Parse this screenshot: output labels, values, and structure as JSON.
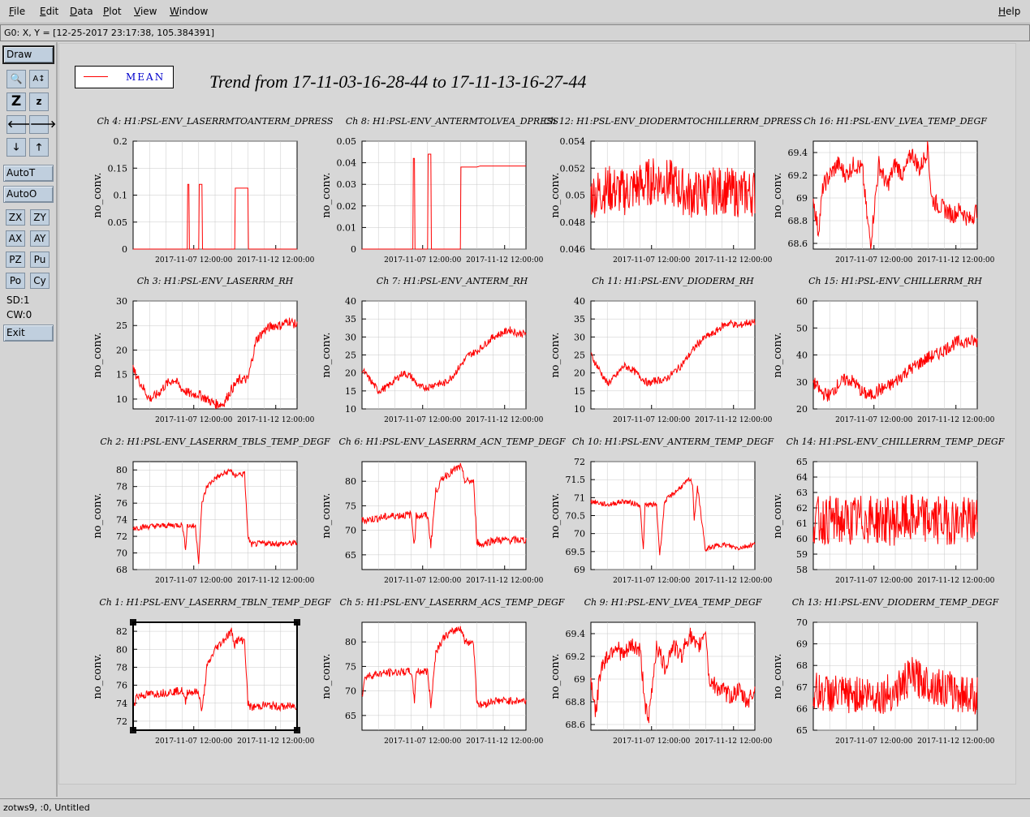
{
  "menu": {
    "file": "File",
    "edit": "Edit",
    "data": "Data",
    "plot": "Plot",
    "view": "View",
    "window": "Window",
    "help": "Help"
  },
  "coord_readout": "G0: X, Y = [12-25-2017 23:17:38, 105.384391]",
  "toolbar": {
    "draw": "Draw",
    "autot": "AutoT",
    "autoo": "AutoO",
    "zx": "ZX",
    "zy": "ZY",
    "ax": "AX",
    "ay": "AY",
    "pz": "PZ",
    "pu": "Pu",
    "po": "Po",
    "cy": "Cy",
    "sd": "SD:1",
    "cw": "CW:0",
    "exit": "Exit",
    "icons": [
      "magnify-icon",
      "autoscale-icon",
      "zoom-in-icon",
      "zoom-out-icon",
      "arrow-left-icon",
      "arrow-right-icon",
      "arrow-down-icon",
      "arrow-up-icon"
    ],
    "tool_glyphs": [
      "🔍",
      "A↕",
      "Z",
      "z",
      "🡐",
      "🡒",
      "🡓",
      "🡑"
    ]
  },
  "legend": {
    "label": "MEAN",
    "color": "#ff0000"
  },
  "title": "Trend from 17-11-03-16-28-44 to 17-11-13-16-27-44",
  "status": "zotws9, :0, Untitled",
  "colors": {
    "trace": "#ff0000",
    "plot_bg": "#ffffff",
    "grid": "#c8c8c8"
  },
  "chart_data": [
    {
      "type": "line",
      "title": "Ch 4: H1:PSL-ENV_LASERRMTOANTERM_DPRESS",
      "ylabel": "no_conv.",
      "ylim": [
        0,
        0.2
      ],
      "yticks": [
        "0",
        "0.05",
        "0.1",
        "0.15",
        "0.2"
      ],
      "xticks": [
        "2017-11-07 12:00:00",
        "2017-11-12 12:00:00"
      ],
      "series": [
        {
          "x": [
            0,
            0.33,
            0.33,
            0.34,
            0.34,
            0.4,
            0.4,
            0.42,
            0.42,
            0.62,
            0.62,
            0.7,
            0.7,
            0.75,
            1
          ],
          "values": [
            0,
            0,
            0.12,
            0.12,
            0,
            0,
            0.12,
            0.12,
            0,
            0,
            0.113,
            0.113,
            0,
            0,
            0
          ]
        }
      ]
    },
    {
      "type": "line",
      "title": "Ch 8: H1:PSL-ENV_ANTERMTOLVEA_DPRESS",
      "ylabel": "no_conv.",
      "ylim": [
        0,
        0.05
      ],
      "yticks": [
        "0",
        "0.01",
        "0.02",
        "0.03",
        "0.04",
        "0.05"
      ],
      "xticks": [
        "2017-11-07 12:00:00",
        "2017-11-12 12:00:00"
      ],
      "series": [
        {
          "x": [
            0,
            0.31,
            0.31,
            0.32,
            0.32,
            0.4,
            0.4,
            0.42,
            0.42,
            0.6,
            0.6,
            0.7,
            0.72,
            1
          ],
          "values": [
            0,
            0,
            0.042,
            0.042,
            0,
            0,
            0.044,
            0.044,
            0,
            0,
            0.038,
            0.038,
            0.0385,
            0.0385
          ]
        }
      ]
    },
    {
      "type": "line",
      "title": "Ch 12: H1:PSL-ENV_DIODERMTOCHILLERRM_DPRESS",
      "ylabel": "no_conv.",
      "ylim": [
        0.046,
        0.054
      ],
      "yticks": [
        "0.046",
        "0.048",
        "0.05",
        "0.052",
        "0.054"
      ],
      "xticks": [
        "2017-11-07 12:00:00",
        "2017-11-12 12:00:00"
      ],
      "series": [
        {
          "x": [
            0,
            0.1,
            0.2,
            0.3,
            0.4,
            0.5,
            0.6,
            0.7,
            0.8,
            0.9,
            1
          ],
          "values": [
            0.05,
            0.0505,
            0.0502,
            0.0507,
            0.0512,
            0.0508,
            0.05,
            0.0502,
            0.0504,
            0.0501,
            0.0502
          ]
        }
      ]
    },
    {
      "type": "line",
      "title": "Ch 16: H1:PSL-ENV_LVEA_TEMP_DEGF",
      "ylabel": "no_conv.",
      "ylim": [
        68.55,
        69.5
      ],
      "yticks": [
        "68.6",
        "68.8",
        "69",
        "69.2",
        "69.4"
      ],
      "xticks": [
        "2017-11-07 12:00:00",
        "2017-11-12 12:00:00"
      ],
      "series": [
        {
          "x": [
            0,
            0.03,
            0.06,
            0.1,
            0.15,
            0.2,
            0.25,
            0.3,
            0.33,
            0.35,
            0.4,
            0.45,
            0.5,
            0.55,
            0.6,
            0.65,
            0.7,
            0.72,
            0.75,
            0.8,
            0.85,
            0.9,
            0.95,
            1
          ],
          "values": [
            69.0,
            68.7,
            69.1,
            69.2,
            69.3,
            69.2,
            69.3,
            69.25,
            68.8,
            68.6,
            69.3,
            69.1,
            69.3,
            69.2,
            69.4,
            69.25,
            69.45,
            69.0,
            68.95,
            68.9,
            68.85,
            68.9,
            68.8,
            68.9
          ]
        }
      ]
    },
    {
      "type": "line",
      "title": "Ch 3: H1:PSL-ENV_LASERRM_RH",
      "ylabel": "no_conv.",
      "ylim": [
        8,
        30
      ],
      "yticks": [
        "10",
        "15",
        "20",
        "25",
        "30"
      ],
      "xticks": [
        "2017-11-07 12:00:00",
        "2017-11-12 12:00:00"
      ],
      "series": [
        {
          "x": [
            0,
            0.05,
            0.1,
            0.15,
            0.2,
            0.25,
            0.3,
            0.35,
            0.4,
            0.45,
            0.5,
            0.55,
            0.6,
            0.65,
            0.7,
            0.75,
            0.8,
            0.85,
            0.9,
            0.95,
            1
          ],
          "values": [
            16,
            13,
            10,
            11,
            13,
            14,
            12,
            11,
            11,
            10,
            9,
            9,
            12,
            14,
            14,
            22,
            24,
            25,
            25,
            26,
            25
          ]
        }
      ]
    },
    {
      "type": "line",
      "title": "Ch 7: H1:PSL-ENV_ANTERM_RH",
      "ylabel": "no_conv.",
      "ylim": [
        10,
        40
      ],
      "yticks": [
        "10",
        "15",
        "20",
        "25",
        "30",
        "35",
        "40"
      ],
      "xticks": [
        "2017-11-07 12:00:00",
        "2017-11-12 12:00:00"
      ],
      "series": [
        {
          "x": [
            0,
            0.05,
            0.1,
            0.15,
            0.2,
            0.25,
            0.3,
            0.35,
            0.4,
            0.45,
            0.5,
            0.55,
            0.6,
            0.65,
            0.7,
            0.75,
            0.8,
            0.85,
            0.9,
            0.95,
            1
          ],
          "values": [
            21,
            18,
            15,
            16,
            18,
            20,
            19,
            16,
            16,
            17,
            17,
            19,
            22,
            25,
            26,
            28,
            30,
            31,
            32,
            31,
            31
          ]
        }
      ]
    },
    {
      "type": "line",
      "title": "Ch 11: H1:PSL-ENV_DIODERM_RH",
      "ylabel": "no_conv.",
      "ylim": [
        10,
        40
      ],
      "yticks": [
        "10",
        "15",
        "20",
        "25",
        "30",
        "35",
        "40"
      ],
      "xticks": [
        "2017-11-07 12:00:00",
        "2017-11-12 12:00:00"
      ],
      "series": [
        {
          "x": [
            0,
            0.05,
            0.1,
            0.15,
            0.2,
            0.25,
            0.3,
            0.35,
            0.4,
            0.45,
            0.5,
            0.55,
            0.6,
            0.65,
            0.7,
            0.75,
            0.8,
            0.85,
            0.9,
            0.95,
            1
          ],
          "values": [
            25,
            21,
            17,
            19,
            22,
            21,
            19,
            17,
            18,
            18,
            20,
            22,
            25,
            28,
            30,
            31,
            33,
            34,
            33,
            34,
            34
          ]
        }
      ]
    },
    {
      "type": "line",
      "title": "Ch 15: H1:PSL-ENV_CHILLERRM_RH",
      "ylabel": "no_conv.",
      "ylim": [
        20,
        60
      ],
      "yticks": [
        "20",
        "30",
        "40",
        "50",
        "60"
      ],
      "xticks": [
        "2017-11-07 12:00:00",
        "2017-11-12 12:00:00"
      ],
      "series": [
        {
          "x": [
            0,
            0.05,
            0.1,
            0.15,
            0.2,
            0.25,
            0.3,
            0.35,
            0.4,
            0.45,
            0.5,
            0.55,
            0.6,
            0.65,
            0.7,
            0.75,
            0.8,
            0.85,
            0.9,
            0.95,
            1
          ],
          "values": [
            30,
            26,
            25,
            29,
            31,
            30,
            26,
            25,
            27,
            28,
            30,
            33,
            35,
            37,
            39,
            40,
            42,
            44,
            45,
            45,
            45
          ]
        }
      ]
    },
    {
      "type": "line",
      "title": "Ch 2: H1:PSL-ENV_LASERRM_TBLS_TEMP_DEGF",
      "ylabel": "no_conv.",
      "ylim": [
        68,
        81
      ],
      "yticks": [
        "68",
        "70",
        "72",
        "74",
        "76",
        "78",
        "80"
      ],
      "xticks": [
        "2017-11-07 12:00:00",
        "2017-11-12 12:00:00"
      ],
      "series": [
        {
          "x": [
            0,
            0.1,
            0.2,
            0.3,
            0.32,
            0.33,
            0.38,
            0.4,
            0.42,
            0.45,
            0.5,
            0.55,
            0.6,
            0.62,
            0.63,
            0.68,
            0.7,
            0.72,
            0.8,
            0.9,
            1
          ],
          "values": [
            73,
            73.2,
            73.3,
            73.4,
            70.5,
            73.3,
            73.2,
            69,
            76,
            78,
            79,
            79.5,
            80,
            79,
            79.5,
            79.5,
            72,
            71,
            71.2,
            71.1,
            71.2
          ]
        }
      ]
    },
    {
      "type": "line",
      "title": "Ch 6: H1:PSL-ENV_LASERRM_ACN_TEMP_DEGF",
      "ylabel": "no_conv.",
      "ylim": [
        62,
        84
      ],
      "yticks": [
        "65",
        "70",
        "75",
        "80"
      ],
      "xticks": [
        "2017-11-07 12:00:00",
        "2017-11-12 12:00:00"
      ],
      "series": [
        {
          "x": [
            0,
            0.1,
            0.2,
            0.3,
            0.32,
            0.33,
            0.4,
            0.42,
            0.45,
            0.5,
            0.55,
            0.6,
            0.62,
            0.63,
            0.68,
            0.7,
            0.72,
            0.8,
            0.9,
            1
          ],
          "values": [
            72,
            72.5,
            73,
            73.2,
            67,
            73,
            73,
            67,
            78,
            81,
            82,
            83,
            81,
            80,
            80,
            68,
            67,
            68,
            68,
            68
          ]
        }
      ]
    },
    {
      "type": "line",
      "title": "Ch 10: H1:PSL-ENV_ANTERM_TEMP_DEGF",
      "ylabel": "no_conv.",
      "ylim": [
        69,
        72
      ],
      "yticks": [
        "69",
        "69.5",
        "70",
        "70.5",
        "71",
        "71.5",
        "72"
      ],
      "xticks": [
        "2017-11-07 12:00:00",
        "2017-11-12 12:00:00"
      ],
      "series": [
        {
          "x": [
            0,
            0.1,
            0.2,
            0.3,
            0.32,
            0.33,
            0.4,
            0.42,
            0.45,
            0.5,
            0.55,
            0.6,
            0.62,
            0.63,
            0.65,
            0.7,
            0.72,
            0.8,
            0.9,
            1
          ],
          "values": [
            70.9,
            70.8,
            70.9,
            70.8,
            69.5,
            70.8,
            70.8,
            69.4,
            70.9,
            71.1,
            71.3,
            71.5,
            71.4,
            70.4,
            71.3,
            69.5,
            69.6,
            69.7,
            69.6,
            69.7
          ]
        }
      ]
    },
    {
      "type": "line",
      "title": "Ch 14: H1:PSL-ENV_CHILLERRM_TEMP_DEGF",
      "ylabel": "no_conv.",
      "ylim": [
        58,
        65
      ],
      "yticks": [
        "58",
        "59",
        "60",
        "61",
        "62",
        "63",
        "64",
        "65"
      ],
      "xticks": [
        "2017-11-07 12:00:00",
        "2017-11-12 12:00:00"
      ],
      "series": [
        {
          "x": [
            0,
            0.1,
            0.2,
            0.3,
            0.4,
            0.5,
            0.6,
            0.7,
            0.8,
            0.9,
            1
          ],
          "values": [
            61.2,
            61.2,
            61.1,
            61.3,
            61.2,
            61.1,
            61.3,
            61.2,
            61.2,
            61.1,
            61.2
          ]
        }
      ]
    },
    {
      "type": "line",
      "title": "Ch 1: H1:PSL-ENV_LASERRM_TBLN_TEMP_DEGF",
      "ylabel": "no_conv.",
      "ylim": [
        71,
        83
      ],
      "yticks": [
        "72",
        "74",
        "76",
        "78",
        "80",
        "82"
      ],
      "xticks": [
        "2017-11-07 12:00:00",
        "2017-11-12 12:00:00"
      ],
      "series": [
        {
          "x": [
            0,
            0.02,
            0.1,
            0.2,
            0.3,
            0.32,
            0.33,
            0.4,
            0.42,
            0.45,
            0.5,
            0.55,
            0.6,
            0.62,
            0.63,
            0.68,
            0.7,
            0.72,
            0.8,
            0.9,
            1
          ],
          "values": [
            73.5,
            74.8,
            75,
            75.2,
            75.4,
            74,
            75.3,
            75.2,
            73,
            78,
            80,
            81,
            82,
            80.5,
            81,
            81,
            74,
            73.5,
            73.8,
            73.6,
            73.7
          ]
        }
      ]
    },
    {
      "type": "line",
      "title": "Ch 5: H1:PSL-ENV_LASERRM_ACS_TEMP_DEGF",
      "ylabel": "no_conv.",
      "ylim": [
        62,
        84
      ],
      "yticks": [
        "65",
        "70",
        "75",
        "80"
      ],
      "xticks": [
        "2017-11-07 12:00:00",
        "2017-11-12 12:00:00"
      ],
      "series": [
        {
          "x": [
            0,
            0.02,
            0.1,
            0.2,
            0.3,
            0.32,
            0.33,
            0.4,
            0.42,
            0.45,
            0.5,
            0.55,
            0.6,
            0.62,
            0.63,
            0.68,
            0.7,
            0.72,
            0.8,
            0.9,
            1
          ],
          "values": [
            69,
            73,
            73.5,
            73.8,
            74,
            68,
            74,
            74,
            67,
            78,
            81,
            82,
            83,
            81,
            80,
            80,
            68,
            67,
            68,
            68,
            68
          ]
        }
      ]
    },
    {
      "type": "line",
      "title": "Ch 9: H1:PSL-ENV_LVEA_TEMP_DEGF",
      "ylabel": "no_conv.",
      "ylim": [
        68.55,
        69.5
      ],
      "yticks": [
        "68.6",
        "68.8",
        "69",
        "69.2",
        "69.4"
      ],
      "xticks": [
        "2017-11-07 12:00:00",
        "2017-11-12 12:00:00"
      ],
      "series": [
        {
          "x": [
            0,
            0.03,
            0.06,
            0.1,
            0.15,
            0.2,
            0.25,
            0.3,
            0.33,
            0.35,
            0.4,
            0.45,
            0.5,
            0.55,
            0.6,
            0.65,
            0.7,
            0.72,
            0.75,
            0.8,
            0.85,
            0.9,
            0.95,
            1
          ],
          "values": [
            69.0,
            68.7,
            69.1,
            69.2,
            69.3,
            69.2,
            69.3,
            69.25,
            68.8,
            68.6,
            69.3,
            69.1,
            69.3,
            69.2,
            69.4,
            69.25,
            69.45,
            69.0,
            68.95,
            68.9,
            68.85,
            68.9,
            68.8,
            68.9
          ]
        }
      ]
    },
    {
      "type": "line",
      "title": "Ch 13: H1:PSL-ENV_DIODERM_TEMP_DEGF",
      "ylabel": "no_conv.",
      "ylim": [
        65,
        70
      ],
      "yticks": [
        "65",
        "66",
        "67",
        "68",
        "69",
        "70"
      ],
      "xticks": [
        "2017-11-07 12:00:00",
        "2017-11-12 12:00:00"
      ],
      "series": [
        {
          "x": [
            0,
            0.1,
            0.2,
            0.3,
            0.4,
            0.5,
            0.6,
            0.7,
            0.8,
            0.9,
            1
          ],
          "values": [
            66.8,
            66.7,
            66.6,
            66.7,
            66.6,
            66.8,
            67.5,
            67.2,
            66.9,
            66.7,
            66.6
          ]
        }
      ]
    }
  ]
}
